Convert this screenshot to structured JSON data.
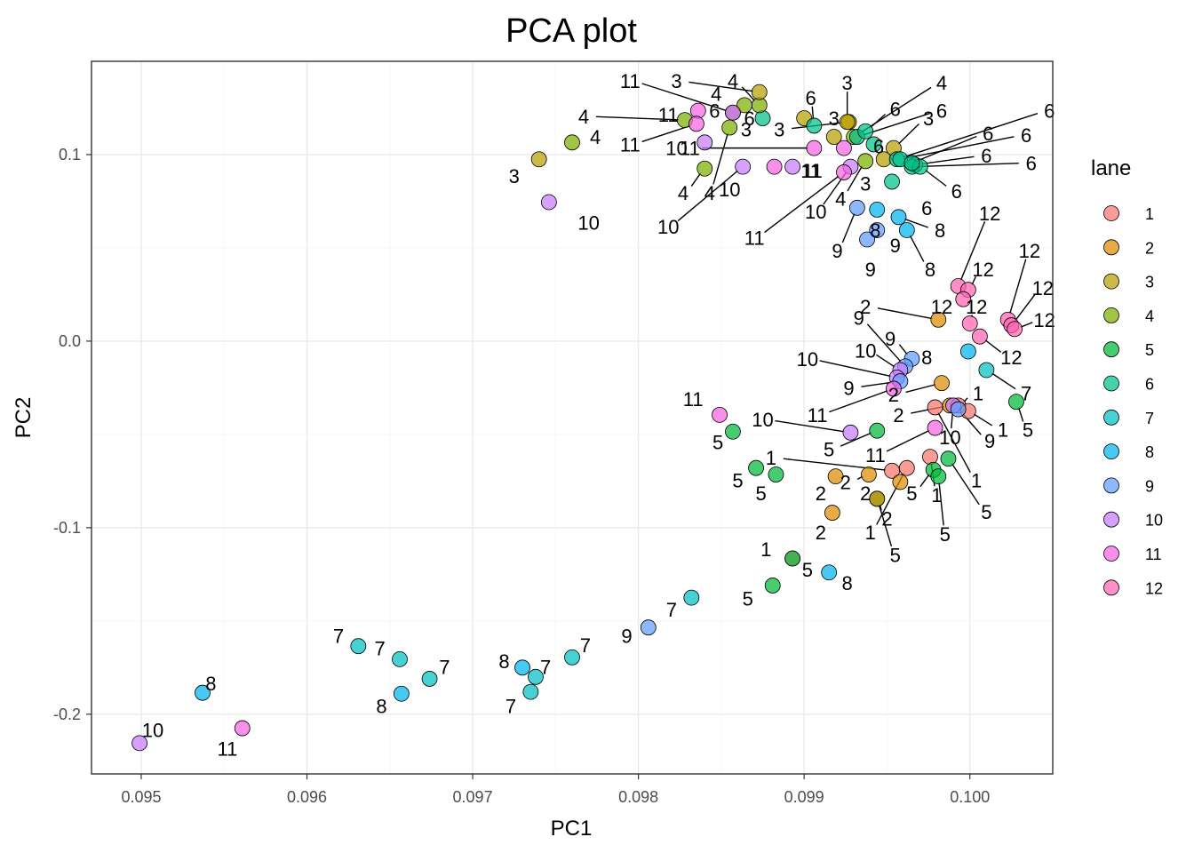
{
  "chart_data": {
    "type": "scatter",
    "title": "PCA plot",
    "xlabel": "PC1",
    "ylabel": "PC2",
    "xlim": [
      0.0947,
      0.1005
    ],
    "ylim": [
      -0.232,
      0.15
    ],
    "x_ticks": [
      0.095,
      0.096,
      0.097,
      0.098,
      0.099,
      0.1
    ],
    "x_tick_labels": [
      "0.095",
      "0.096",
      "0.097",
      "0.098",
      "0.099",
      "0.100"
    ],
    "y_ticks": [
      -0.2,
      -0.1,
      0.0,
      0.1
    ],
    "y_tick_labels": [
      "-0.2",
      "-0.1",
      "0.0",
      "0.1"
    ],
    "grid": true,
    "legend": {
      "title": "lane",
      "position": "right",
      "entries": [
        "1",
        "2",
        "3",
        "4",
        "5",
        "6",
        "7",
        "8",
        "9",
        "10",
        "11",
        "12"
      ]
    },
    "colors": {
      "1": "#F8766D",
      "2": "#DE8C00",
      "3": "#B79F00",
      "4": "#7CAE00",
      "5": "#00BA38",
      "6": "#00C08B",
      "7": "#00BFC4",
      "8": "#00B4F0",
      "9": "#619CFF",
      "10": "#C77CFF",
      "11": "#F564E3",
      "12": "#FF64B0"
    },
    "points": [
      {
        "lane": "10",
        "x": 0.09499,
        "y": -0.2155,
        "label": "10",
        "lx": 0.09507,
        "ly": -0.2085,
        "leader": false
      },
      {
        "lane": "8",
        "x": 0.09537,
        "y": -0.1885,
        "label": "8",
        "lx": 0.09542,
        "ly": -0.1835,
        "leader": false
      },
      {
        "lane": "11",
        "x": 0.09561,
        "y": -0.2075,
        "label": "11",
        "lx": 0.09552,
        "ly": -0.2185,
        "leader": false
      },
      {
        "lane": "7",
        "x": 0.09631,
        "y": -0.1635,
        "label": "7",
        "lx": 0.09619,
        "ly": -0.158,
        "leader": false
      },
      {
        "lane": "7",
        "x": 0.09656,
        "y": -0.1705,
        "label": "7",
        "lx": 0.09644,
        "ly": -0.1645,
        "leader": false
      },
      {
        "lane": "8",
        "x": 0.09657,
        "y": -0.189,
        "label": "8",
        "lx": 0.09645,
        "ly": -0.1955,
        "leader": false
      },
      {
        "lane": "7",
        "x": 0.09674,
        "y": -0.181,
        "label": "7",
        "lx": 0.09683,
        "ly": -0.1745,
        "leader": false
      },
      {
        "lane": "8",
        "x": 0.0973,
        "y": -0.175,
        "label": "8",
        "lx": 0.09719,
        "ly": -0.1715,
        "leader": false
      },
      {
        "lane": "7",
        "x": 0.09738,
        "y": -0.18,
        "label": "7",
        "lx": 0.09744,
        "ly": -0.1745,
        "leader": false
      },
      {
        "lane": "7",
        "x": 0.09735,
        "y": -0.188,
        "label": "7",
        "lx": 0.09723,
        "ly": -0.1955,
        "leader": false
      },
      {
        "lane": "7",
        "x": 0.0976,
        "y": -0.1695,
        "label": "7",
        "lx": 0.09768,
        "ly": -0.163,
        "leader": false
      },
      {
        "lane": "9",
        "x": 0.09806,
        "y": -0.1535,
        "label": "9",
        "lx": 0.09793,
        "ly": -0.158,
        "leader": false
      },
      {
        "lane": "7",
        "x": 0.09832,
        "y": -0.1375,
        "label": "7",
        "lx": 0.0982,
        "ly": -0.144,
        "leader": false
      },
      {
        "lane": "5",
        "x": 0.09881,
        "y": -0.131,
        "label": "5",
        "lx": 0.09866,
        "ly": -0.138,
        "leader": false
      },
      {
        "lane": "1",
        "x": 0.09893,
        "y": -0.1165,
        "label": "1",
        "lx": 0.09877,
        "ly": -0.1115,
        "leader": false
      },
      {
        "lane": "5",
        "x": 0.09893,
        "y": -0.1165,
        "label": "5",
        "lx": 0.09902,
        "ly": -0.1225,
        "leader": false
      },
      {
        "lane": "8",
        "x": 0.09915,
        "y": -0.124,
        "label": "8",
        "lx": 0.09926,
        "ly": -0.1295,
        "leader": false
      },
      {
        "lane": "11",
        "x": 0.09849,
        "y": -0.0395,
        "label": "11",
        "lx": 0.09833,
        "ly": -0.031,
        "leader": false
      },
      {
        "lane": "5",
        "x": 0.09857,
        "y": -0.0485,
        "label": "5",
        "lx": 0.09848,
        "ly": -0.054,
        "leader": false
      },
      {
        "lane": "5",
        "x": 0.09871,
        "y": -0.068,
        "label": "5",
        "lx": 0.0986,
        "ly": -0.0745,
        "leader": false
      },
      {
        "lane": "5",
        "x": 0.09883,
        "y": -0.0715,
        "label": "5",
        "lx": 0.09874,
        "ly": -0.0815,
        "leader": false
      },
      {
        "lane": "10",
        "x": 0.09928,
        "y": -0.049,
        "label": "10",
        "lx": 0.09875,
        "ly": -0.042,
        "leader": true
      },
      {
        "lane": "2",
        "x": 0.09919,
        "y": -0.0725,
        "label": "2",
        "lx": 0.0991,
        "ly": -0.0815,
        "leader": false
      },
      {
        "lane": "2",
        "x": 0.09917,
        "y": -0.092,
        "label": "2",
        "lx": 0.0991,
        "ly": -0.1025,
        "leader": false
      },
      {
        "lane": "1",
        "x": 0.09953,
        "y": -0.0695,
        "label": "1",
        "lx": 0.0988,
        "ly": -0.0625,
        "leader": true
      },
      {
        "lane": "2",
        "x": 0.09939,
        "y": -0.0715,
        "label": "2",
        "lx": 0.09925,
        "ly": -0.0755,
        "leader": true
      },
      {
        "lane": "5",
        "x": 0.09944,
        "y": -0.048,
        "label": "5",
        "lx": 0.09915,
        "ly": -0.058,
        "leader": true
      },
      {
        "lane": "2",
        "x": 0.09958,
        "y": -0.0755,
        "label": "2",
        "lx": 0.09937,
        "ly": -0.0815,
        "leader": false
      },
      {
        "lane": "1",
        "x": 0.09962,
        "y": -0.068,
        "label": "1",
        "lx": 0.0994,
        "ly": -0.1025,
        "leader": true
      },
      {
        "lane": "5",
        "x": 0.09944,
        "y": -0.0845,
        "label": "5",
        "lx": 0.09955,
        "ly": -0.1145,
        "leader": true
      },
      {
        "lane": "2",
        "x": 0.09944,
        "y": -0.0845,
        "label": "2",
        "lx": 0.0995,
        "ly": -0.095,
        "leader": true
      },
      {
        "lane": "11",
        "x": 0.09979,
        "y": -0.0465,
        "label": "11",
        "lx": 0.09943,
        "ly": -0.061,
        "leader": true
      },
      {
        "lane": "1",
        "x": 0.09976,
        "y": -0.062,
        "label": "1",
        "lx": 0.0998,
        "ly": -0.0825,
        "leader": true
      },
      {
        "lane": "5",
        "x": 0.09978,
        "y": -0.069,
        "label": "5",
        "lx": 0.09965,
        "ly": -0.0815,
        "leader": true
      },
      {
        "lane": "5",
        "x": 0.09981,
        "y": -0.0725,
        "label": "5",
        "lx": 0.09985,
        "ly": -0.1035,
        "leader": true
      },
      {
        "lane": "5",
        "x": 0.09987,
        "y": -0.063,
        "label": "5",
        "lx": 0.1001,
        "ly": -0.0915,
        "leader": true
      },
      {
        "lane": "1",
        "x": 0.09979,
        "y": -0.0355,
        "label": "1",
        "lx": 0.10004,
        "ly": -0.0745,
        "leader": true
      },
      {
        "lane": "2",
        "x": 0.09983,
        "y": -0.0225,
        "label": "2",
        "lx": 0.09954,
        "ly": -0.0285,
        "leader": true
      },
      {
        "lane": "2",
        "x": 0.09988,
        "y": -0.0345,
        "label": "2",
        "lx": 0.09957,
        "ly": -0.0395,
        "leader": true
      },
      {
        "lane": "1",
        "x": 0.09993,
        "y": -0.0345,
        "label": "1",
        "lx": 0.10005,
        "ly": -0.028,
        "leader": true
      },
      {
        "lane": "10",
        "x": 0.0999,
        "y": -0.0345,
        "label": "10",
        "lx": 0.09988,
        "ly": -0.0515,
        "leader": true
      },
      {
        "lane": "1",
        "x": 0.09999,
        "y": -0.0375,
        "label": "1",
        "lx": 0.1002,
        "ly": -0.0475,
        "leader": true
      },
      {
        "lane": "9",
        "x": 0.09993,
        "y": -0.0365,
        "label": "9",
        "lx": 0.10012,
        "ly": -0.0535,
        "leader": true
      },
      {
        "lane": "5",
        "x": 0.10028,
        "y": -0.0325,
        "label": "5",
        "lx": 0.10035,
        "ly": -0.0475,
        "leader": true
      },
      {
        "lane": "7",
        "x": 0.1001,
        "y": -0.0155,
        "label": "7",
        "lx": 0.10034,
        "ly": -0.028,
        "leader": true
      },
      {
        "lane": "8",
        "x": 0.09999,
        "y": -0.0055,
        "label": "8",
        "lx": 0.09974,
        "ly": -0.0085,
        "leader": false
      },
      {
        "lane": "9",
        "x": 0.09965,
        "y": -0.0095,
        "label": "9",
        "lx": 0.09952,
        "ly": 0.0015,
        "leader": true
      },
      {
        "lane": "9",
        "x": 0.09961,
        "y": -0.0135,
        "label": "9",
        "lx": 0.09933,
        "ly": 0.0125,
        "leader": true
      },
      {
        "lane": "10",
        "x": 0.09958,
        "y": -0.0155,
        "label": "10",
        "lx": 0.09937,
        "ly": -0.005,
        "leader": true
      },
      {
        "lane": "10",
        "x": 0.09956,
        "y": -0.0195,
        "label": "10",
        "lx": 0.09902,
        "ly": -0.0095,
        "leader": true
      },
      {
        "lane": "9",
        "x": 0.09958,
        "y": -0.0215,
        "label": "9",
        "lx": 0.09927,
        "ly": -0.025,
        "leader": true
      },
      {
        "lane": "11",
        "x": 0.09954,
        "y": -0.0255,
        "label": "11",
        "lx": 0.09908,
        "ly": -0.0395,
        "leader": true
      },
      {
        "lane": "2",
        "x": 0.09981,
        "y": 0.0115,
        "label": "2",
        "lx": 0.09937,
        "ly": 0.0185,
        "leader": true
      },
      {
        "lane": "12",
        "x": 0.09993,
        "y": 0.0295,
        "label": "12",
        "lx": 0.10012,
        "ly": 0.0685,
        "leader": true
      },
      {
        "lane": "12",
        "x": 0.09999,
        "y": 0.0275,
        "label": "12",
        "lx": 0.10008,
        "ly": 0.0385,
        "leader": true
      },
      {
        "lane": "12",
        "x": 0.09996,
        "y": 0.0225,
        "label": "12",
        "lx": 0.09983,
        "ly": 0.0185,
        "leader": false
      },
      {
        "lane": "12",
        "x": 0.1,
        "y": 0.0095,
        "label": "12",
        "lx": 0.10004,
        "ly": 0.0185,
        "leader": true
      },
      {
        "lane": "12",
        "x": 0.10006,
        "y": 0.0025,
        "label": "12",
        "lx": 0.10025,
        "ly": -0.0085,
        "leader": true
      },
      {
        "lane": "12",
        "x": 0.10023,
        "y": 0.0115,
        "label": "12",
        "lx": 0.10036,
        "ly": 0.0485,
        "leader": true
      },
      {
        "lane": "12",
        "x": 0.10025,
        "y": 0.0085,
        "label": "12",
        "lx": 0.10044,
        "ly": 0.0285,
        "leader": true
      },
      {
        "lane": "12",
        "x": 0.10027,
        "y": 0.0065,
        "label": "12",
        "lx": 0.10045,
        "ly": 0.0115,
        "leader": true
      },
      {
        "lane": "8",
        "x": 0.09957,
        "y": 0.0665,
        "label": "8",
        "lx": 0.09982,
        "ly": 0.0595,
        "leader": true
      },
      {
        "lane": "8",
        "x": 0.09962,
        "y": 0.0595,
        "label": "8",
        "lx": 0.09976,
        "ly": 0.0385,
        "leader": true
      },
      {
        "lane": "8",
        "x": 0.09944,
        "y": 0.0705,
        "label": "8",
        "lx": 0.09943,
        "ly": 0.0595,
        "leader": false
      },
      {
        "lane": "9",
        "x": 0.09932,
        "y": 0.0715,
        "label": "9",
        "lx": 0.0992,
        "ly": 0.0485,
        "leader": true
      },
      {
        "lane": "9",
        "x": 0.09944,
        "y": 0.0595,
        "label": "9",
        "lx": 0.09955,
        "ly": 0.0515,
        "leader": false
      },
      {
        "lane": "9",
        "x": 0.09938,
        "y": 0.0545,
        "label": "9",
        "lx": 0.0994,
        "ly": 0.0385,
        "leader": false
      },
      {
        "lane": "6",
        "x": 0.09953,
        "y": 0.0855,
        "label": "6",
        "lx": 0.09974,
        "ly": 0.0715,
        "leader": false
      },
      {
        "lane": "3",
        "x": 0.09948,
        "y": 0.0975,
        "label": "3",
        "lx": 0.09937,
        "ly": 0.0845,
        "leader": false
      },
      {
        "lane": "4",
        "x": 0.09937,
        "y": 0.0965,
        "label": "4",
        "lx": 0.09922,
        "ly": 0.0765,
        "leader": true
      },
      {
        "lane": "10",
        "x": 0.09928,
        "y": 0.0935,
        "label": "10",
        "lx": 0.09907,
        "ly": 0.0695,
        "leader": true
      },
      {
        "lane": "11",
        "x": 0.09924,
        "y": 0.0905,
        "label": "11",
        "lx": 0.0987,
        "ly": 0.0555,
        "leader": true
      },
      {
        "lane": "10",
        "x": 0.09893,
        "y": 0.0935,
        "label": "10",
        "lx": 0.09855,
        "ly": 0.0815,
        "leader": false
      },
      {
        "lane": "11",
        "x": 0.09882,
        "y": 0.0935,
        "label": "11",
        "lx": 0.09904,
        "ly": 0.0915,
        "leader": false
      },
      {
        "lane": "10",
        "x": 0.09863,
        "y": 0.0935,
        "label": "10",
        "lx": 0.09818,
        "ly": 0.0615,
        "leader": true
      },
      {
        "lane": "11",
        "x": 0.09906,
        "y": 0.1035,
        "label": "11",
        "lx": 0.09831,
        "ly": 0.1035,
        "leader": true
      },
      {
        "lane": "11",
        "x": 0.09924,
        "y": 0.1035,
        "label": "11",
        "lx": 0.09905,
        "ly": 0.0915,
        "leader": false
      },
      {
        "lane": "3",
        "x": 0.09927,
        "y": 0.1175,
        "label": "3",
        "lx": 0.09885,
        "ly": 0.1135,
        "leader": true
      },
      {
        "lane": "3",
        "x": 0.09926,
        "y": 0.1175,
        "label": "3",
        "lx": 0.09926,
        "ly": 0.1385,
        "leader": true
      },
      {
        "lane": "3",
        "x": 0.09918,
        "y": 0.1095,
        "label": "3",
        "lx": 0.09918,
        "ly": 0.1195,
        "leader": false
      },
      {
        "lane": "3",
        "x": 0.099,
        "y": 0.1195,
        "label": "3",
        "lx": 0.09865,
        "ly": 0.1135,
        "leader": false
      },
      {
        "lane": "3",
        "x": 0.09954,
        "y": 0.1035,
        "label": "3",
        "lx": 0.09975,
        "ly": 0.1195,
        "leader": true
      },
      {
        "lane": "4",
        "x": 0.0993,
        "y": 0.1095,
        "label": "4",
        "lx": 0.09983,
        "ly": 0.1385,
        "leader": true
      },
      {
        "lane": "6",
        "x": 0.09932,
        "y": 0.1095,
        "label": "6",
        "lx": 0.09983,
        "ly": 0.1235,
        "leader": true
      },
      {
        "lane": "6",
        "x": 0.09937,
        "y": 0.1125,
        "label": "6",
        "lx": 0.09955,
        "ly": 0.1245,
        "leader": true
      },
      {
        "lane": "6",
        "x": 0.09942,
        "y": 0.1055,
        "label": "6",
        "lx": 0.09945,
        "ly": 0.1045,
        "leader": false
      },
      {
        "lane": "6",
        "x": 0.09956,
        "y": 0.0975,
        "label": "6",
        "lx": 0.10048,
        "ly": 0.1235,
        "leader": true
      },
      {
        "lane": "6",
        "x": 0.09958,
        "y": 0.0975,
        "label": "6",
        "lx": 0.10034,
        "ly": 0.1105,
        "leader": true
      },
      {
        "lane": "6",
        "x": 0.09967,
        "y": 0.0945,
        "label": "6",
        "lx": 0.1001,
        "ly": 0.0995,
        "leader": true
      },
      {
        "lane": "6",
        "x": 0.09965,
        "y": 0.0935,
        "label": "6",
        "lx": 0.10037,
        "ly": 0.0955,
        "leader": true
      },
      {
        "lane": "6",
        "x": 0.0997,
        "y": 0.0935,
        "label": "6",
        "lx": 0.09992,
        "ly": 0.0805,
        "leader": true
      },
      {
        "lane": "6",
        "x": 0.09965,
        "y": 0.0955,
        "label": "6",
        "lx": 0.10011,
        "ly": 0.1115,
        "leader": true
      },
      {
        "lane": "6",
        "x": 0.09906,
        "y": 0.1155,
        "label": "6",
        "lx": 0.09904,
        "ly": 0.1305,
        "leader": true
      },
      {
        "lane": "6",
        "x": 0.09875,
        "y": 0.1195,
        "label": "6",
        "lx": 0.09867,
        "ly": 0.1195,
        "leader": false
      },
      {
        "lane": "4",
        "x": 0.09873,
        "y": 0.1265,
        "label": "4",
        "lx": 0.09857,
        "ly": 0.1395,
        "leader": true
      },
      {
        "lane": "3",
        "x": 0.09873,
        "y": 0.1335,
        "label": "3",
        "lx": 0.09823,
        "ly": 0.1395,
        "leader": true
      },
      {
        "lane": "6",
        "x": 0.09857,
        "y": 0.1225,
        "label": "6",
        "lx": 0.09846,
        "ly": 0.1235,
        "leader": false
      },
      {
        "lane": "4",
        "x": 0.09864,
        "y": 0.1265,
        "label": "4",
        "lx": 0.09847,
        "ly": 0.1325,
        "leader": false
      },
      {
        "lane": "11",
        "x": 0.09857,
        "y": 0.1225,
        "label": "11",
        "lx": 0.09795,
        "ly": 0.1395,
        "leader": true
      },
      {
        "lane": "11",
        "x": 0.09836,
        "y": 0.1235,
        "label": "11",
        "lx": 0.09818,
        "ly": 0.1215,
        "leader": false
      },
      {
        "lane": "4",
        "x": 0.09828,
        "y": 0.1185,
        "label": "4",
        "lx": 0.09767,
        "ly": 0.1205,
        "leader": true
      },
      {
        "lane": "4",
        "x": 0.09855,
        "y": 0.1145,
        "label": "4",
        "lx": 0.09843,
        "ly": 0.0795,
        "leader": true
      },
      {
        "lane": "11",
        "x": 0.09835,
        "y": 0.1165,
        "label": "11",
        "lx": 0.09795,
        "ly": 0.1055,
        "leader": true
      },
      {
        "lane": "10",
        "x": 0.0984,
        "y": 0.1065,
        "label": "10",
        "lx": 0.09823,
        "ly": 0.1035,
        "leader": false
      },
      {
        "lane": "4",
        "x": 0.0984,
        "y": 0.0925,
        "label": "4",
        "lx": 0.09827,
        "ly": 0.0795,
        "leader": true
      },
      {
        "lane": "4",
        "x": 0.0976,
        "y": 0.1065,
        "label": "4",
        "lx": 0.09774,
        "ly": 0.1095,
        "leader": false
      },
      {
        "lane": "3",
        "x": 0.0974,
        "y": 0.0975,
        "label": "3",
        "lx": 0.09725,
        "ly": 0.0885,
        "leader": false
      },
      {
        "lane": "10",
        "x": 0.09746,
        "y": 0.0745,
        "label": "10",
        "lx": 0.0977,
        "ly": 0.0635,
        "leader": false
      }
    ]
  }
}
